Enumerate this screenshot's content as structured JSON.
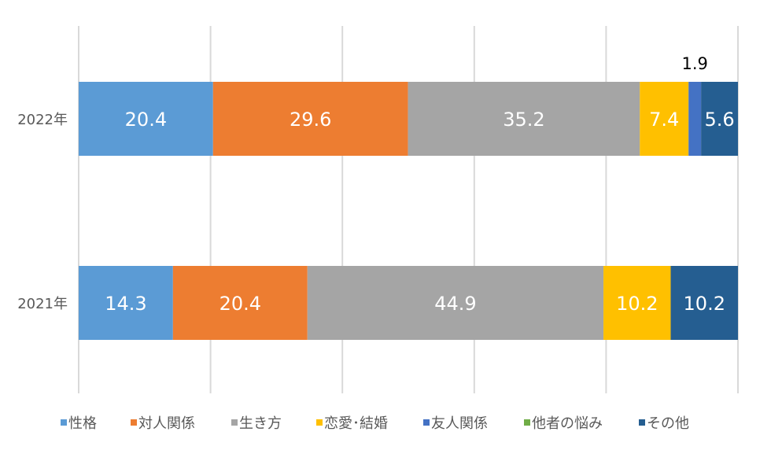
{
  "chart_data": {
    "type": "bar",
    "orientation": "horizontal",
    "stacked": "percent",
    "categories": [
      "2022年",
      "2021年"
    ],
    "series": [
      {
        "name": "性格",
        "color": "#5B9BD5",
        "values": [
          20.4,
          14.3
        ]
      },
      {
        "name": "対人関係",
        "color": "#ED7D31",
        "values": [
          29.6,
          20.4
        ]
      },
      {
        "name": "生き方",
        "color": "#A5A5A5",
        "values": [
          35.2,
          44.9
        ]
      },
      {
        "name": "恋愛･結婚",
        "color": "#FFC000",
        "values": [
          7.4,
          10.2
        ]
      },
      {
        "name": "友人関係",
        "color": "#4472C4",
        "values": [
          1.9,
          0
        ]
      },
      {
        "name": "他者の悩み",
        "color": "#70AD47",
        "values": [
          0,
          0
        ]
      },
      {
        "name": "その他",
        "color": "#255E91",
        "values": [
          5.6,
          10.2
        ]
      }
    ],
    "xlim": [
      0,
      100
    ],
    "grid": true,
    "legend": "bottom",
    "data_labels": true
  }
}
